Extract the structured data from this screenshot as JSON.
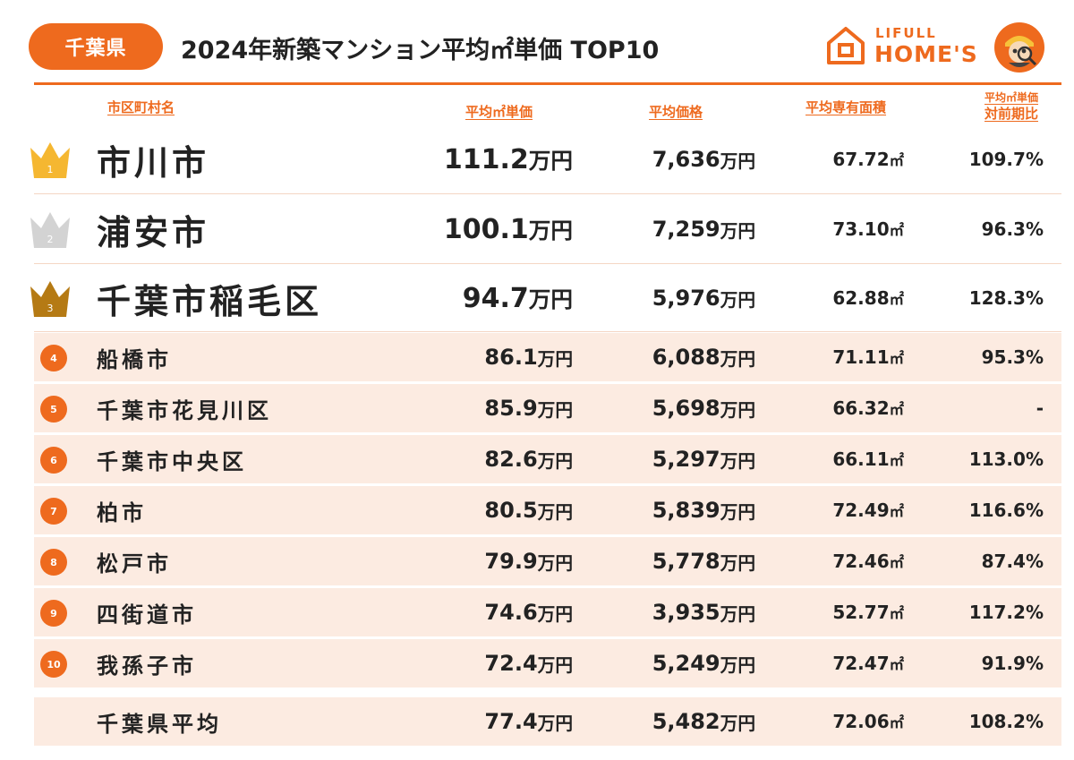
{
  "header": {
    "badge": "千葉県",
    "title": "2024年新築マンション平均㎡単価 TOP10",
    "logo_top": "LIFULL",
    "logo_bottom": "HOME'S"
  },
  "colors": {
    "accent": "#ee6a1e",
    "row_shade": "#fcebe1",
    "gold": "#f5b731",
    "silver": "#d3d3d3",
    "bronze": "#b57a14"
  },
  "chart_data": {
    "type": "table",
    "columns": {
      "name": "市区町村名",
      "unit_price": "平均㎡単価",
      "avg_price": "平均価格",
      "avg_area": "平均専有面積",
      "yoy_line1": "平均㎡単価",
      "yoy_line2": "対前期比"
    },
    "rows": [
      {
        "rank": "1",
        "name": "市川市",
        "unit_price": "111.2",
        "avg_price": "7,636",
        "area": "67.72",
        "yoy": "109.7%"
      },
      {
        "rank": "2",
        "name": "浦安市",
        "unit_price": "100.1",
        "avg_price": "7,259",
        "area": "73.10",
        "yoy": "96.3%"
      },
      {
        "rank": "3",
        "name": "千葉市稲毛区",
        "unit_price": "94.7",
        "avg_price": "5,976",
        "area": "62.88",
        "yoy": "128.3%"
      },
      {
        "rank": "4",
        "name": "船橋市",
        "unit_price": "86.1",
        "avg_price": "6,088",
        "area": "71.11",
        "yoy": "95.3%"
      },
      {
        "rank": "5",
        "name": "千葉市花見川区",
        "unit_price": "85.9",
        "avg_price": "5,698",
        "area": "66.32",
        "yoy": "-"
      },
      {
        "rank": "6",
        "name": "千葉市中央区",
        "unit_price": "82.6",
        "avg_price": "5,297",
        "area": "66.11",
        "yoy": "113.0%"
      },
      {
        "rank": "7",
        "name": "柏市",
        "unit_price": "80.5",
        "avg_price": "5,839",
        "area": "72.49",
        "yoy": "116.6%"
      },
      {
        "rank": "8",
        "name": "松戸市",
        "unit_price": "79.9",
        "avg_price": "5,778",
        "area": "72.46",
        "yoy": "87.4%"
      },
      {
        "rank": "9",
        "name": "四街道市",
        "unit_price": "74.6",
        "avg_price": "3,935",
        "area": "52.77",
        "yoy": "117.2%"
      },
      {
        "rank": "10",
        "name": "我孫子市",
        "unit_price": "72.4",
        "avg_price": "5,249",
        "area": "72.47",
        "yoy": "91.9%"
      }
    ],
    "average": {
      "name": "千葉県平均",
      "unit_price": "77.4",
      "avg_price": "5,482",
      "area": "72.06",
      "yoy": "108.2%"
    },
    "units": {
      "price": "万円",
      "area": "㎡"
    }
  }
}
